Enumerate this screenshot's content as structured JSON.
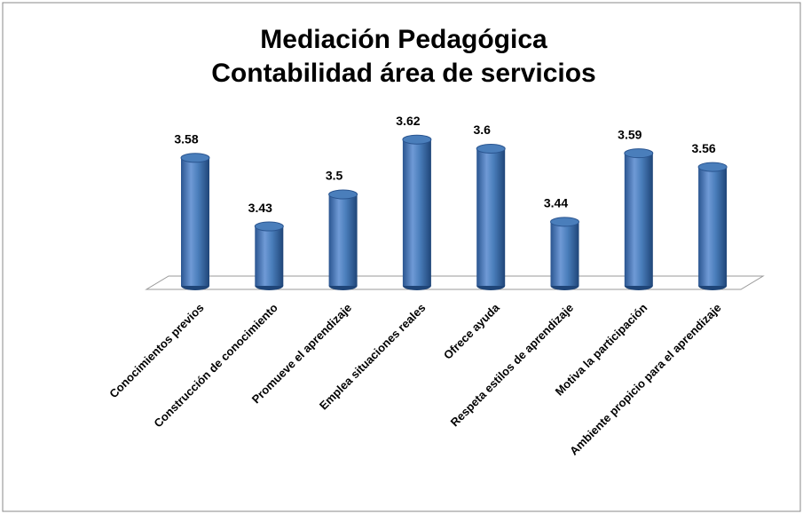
{
  "chart_data": {
    "type": "bar",
    "title": "Mediación Pedagógica",
    "subtitle": "Contabilidad área de servicios",
    "categories": [
      "Conocimientos previos",
      "Construcción de  conocimiento",
      "Promueve el aprendizaje",
      "Emplea situaciones reales",
      "Ofrece ayuda",
      "Respeta estilos de aprendizaje",
      "Motiva la participación",
      "Ambiente propicio para el aprendizaje"
    ],
    "values": [
      3.58,
      3.43,
      3.5,
      3.62,
      3.6,
      3.44,
      3.59,
      3.56
    ],
    "color": "#4a7ebb",
    "ylim": [
      3.3,
      3.7
    ]
  }
}
